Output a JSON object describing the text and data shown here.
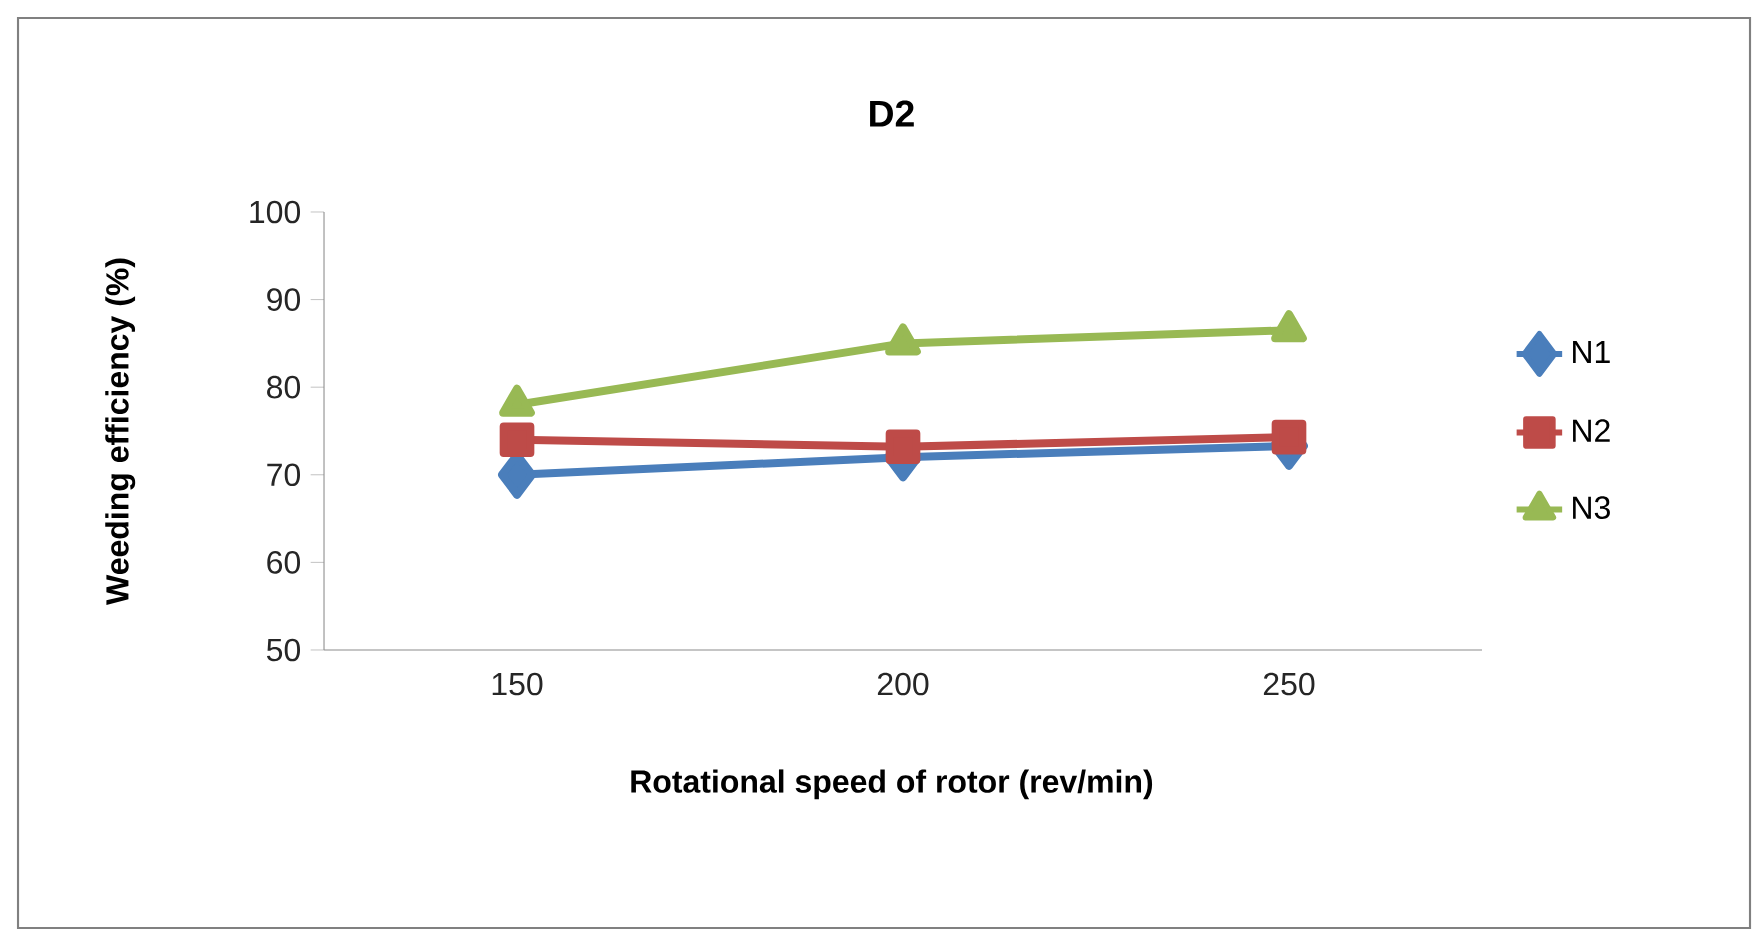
{
  "chart_data": {
    "type": "line",
    "title": "D2",
    "xlabel": "Rotational speed of rotor (rev/min)",
    "ylabel": "Weeding efficiency (%)",
    "categories": [
      "150",
      "200",
      "250"
    ],
    "series": [
      {
        "name": "N1",
        "color": "#4a7ebb",
        "marker": "diamond",
        "values": [
          70,
          72,
          73.3
        ]
      },
      {
        "name": "N2",
        "color": "#be4b48",
        "marker": "square",
        "values": [
          74,
          73.2,
          74.3
        ]
      },
      {
        "name": "N3",
        "color": "#98b954",
        "marker": "triangle",
        "values": [
          78,
          85,
          86.5
        ]
      }
    ],
    "ylim": [
      50,
      100
    ],
    "yticks": [
      50,
      60,
      70,
      80,
      90,
      100
    ],
    "grid": false,
    "legend": "right",
    "line_style": "solid"
  }
}
